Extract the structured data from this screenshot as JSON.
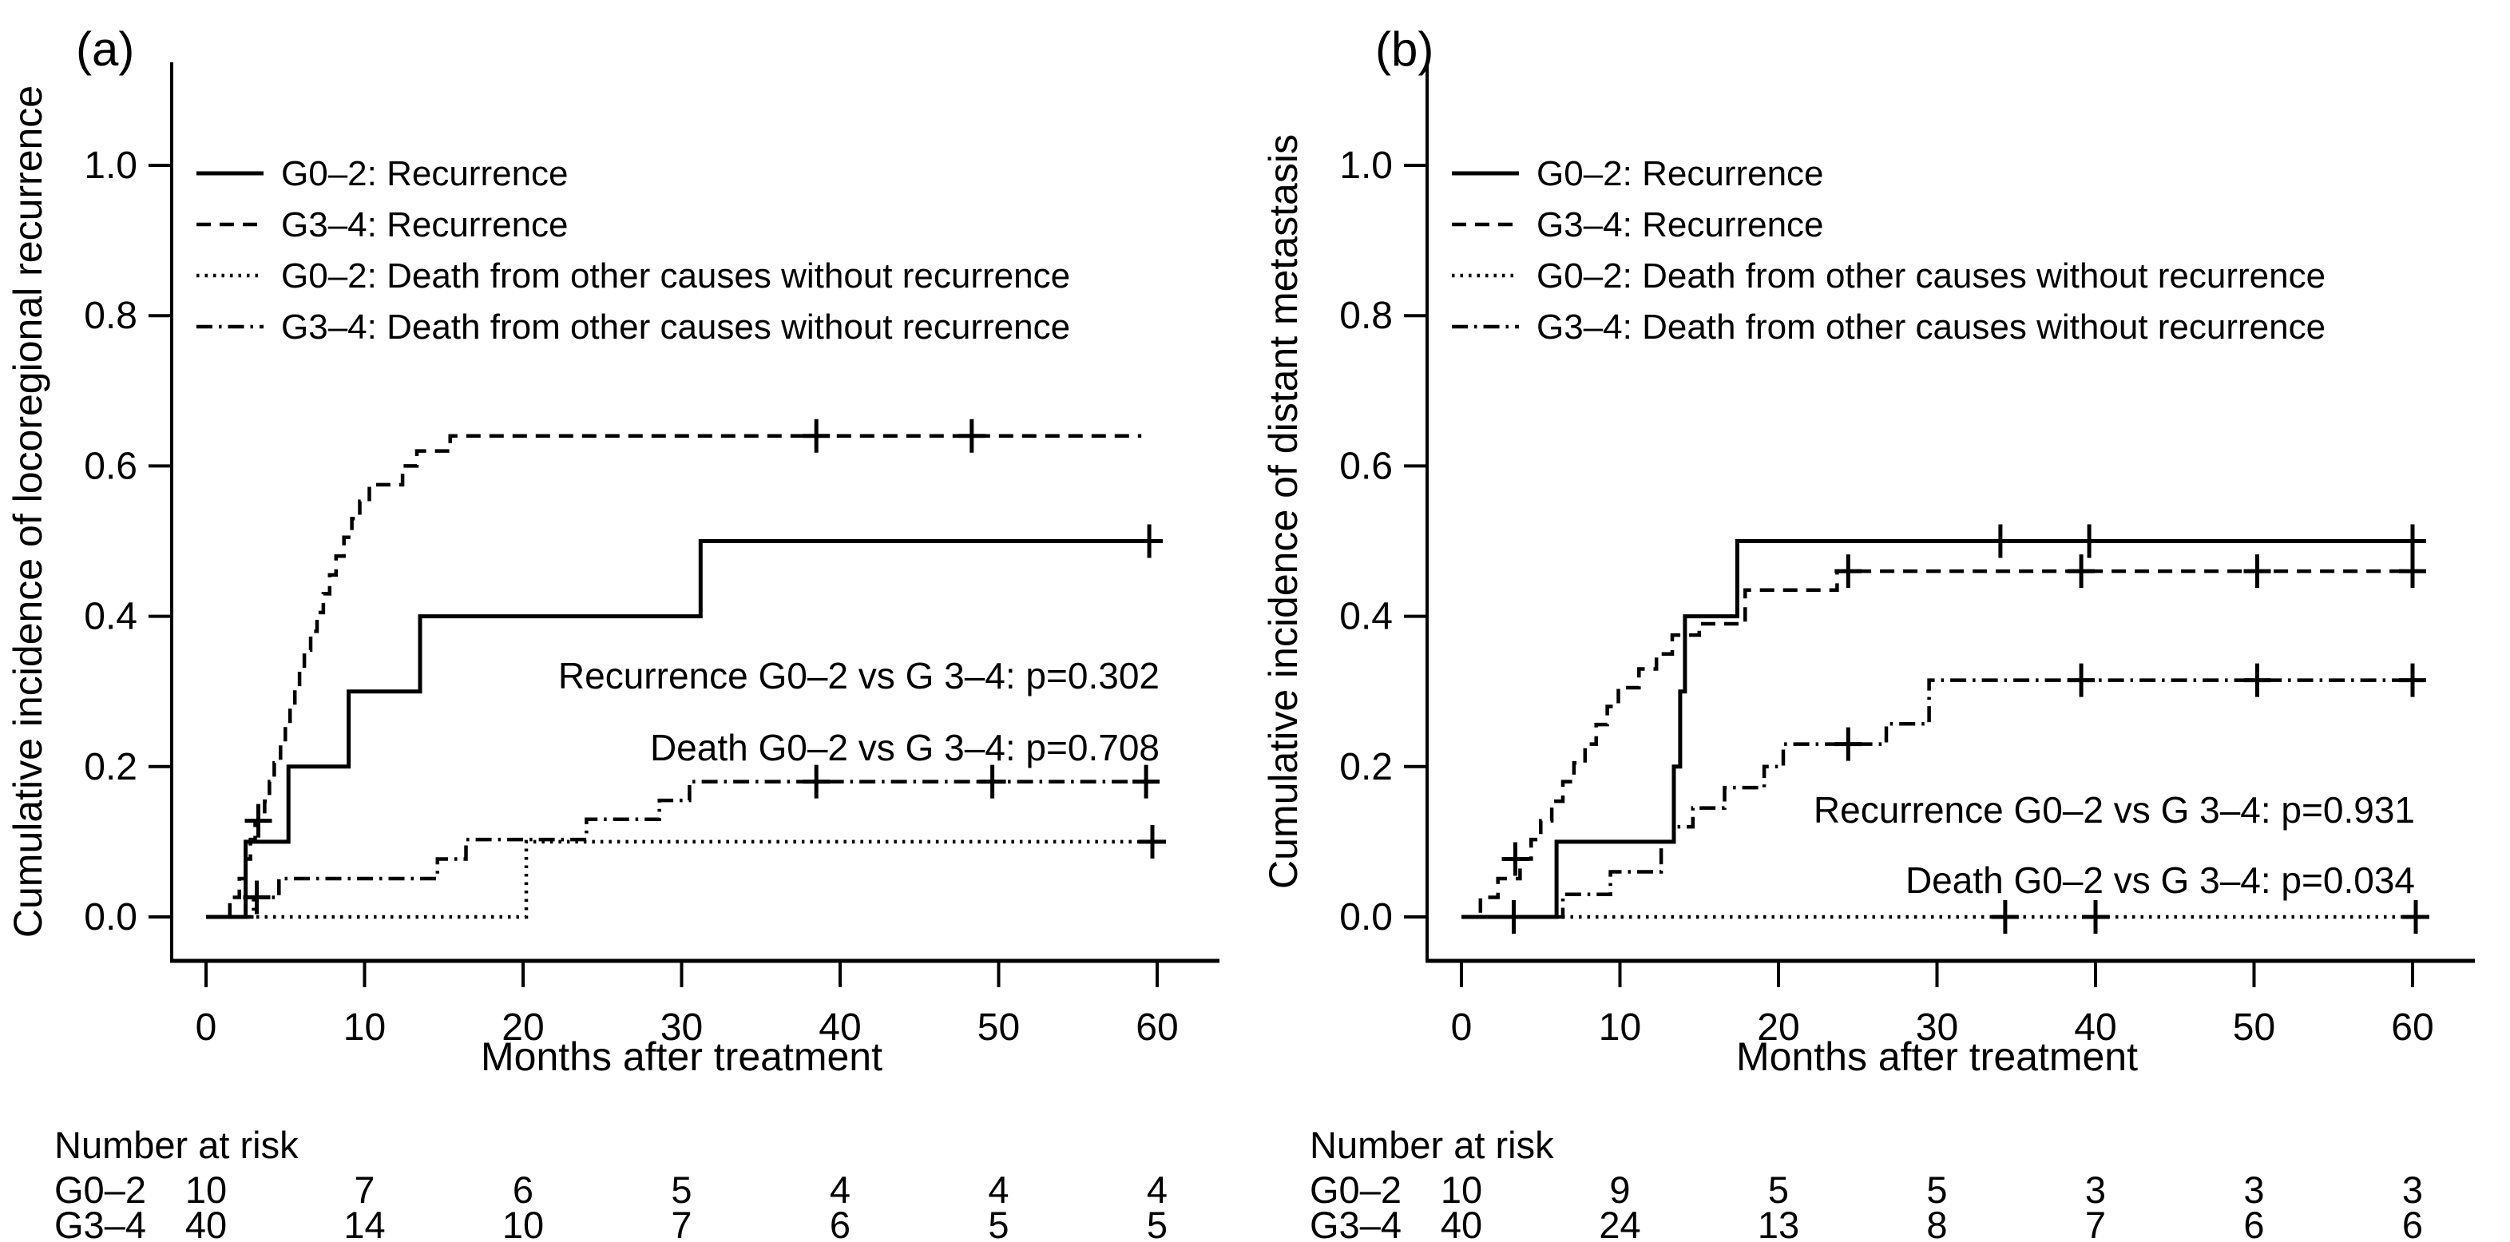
{
  "colors": {
    "foreground": "#000000",
    "background": "#ffffff"
  },
  "chart_data": [
    {
      "panel_label": "(a)",
      "type": "line",
      "subtype": "cumulative-incidence-step-curves",
      "title": "",
      "ylabel": "Cumulative incidence of locoregional recurrence",
      "xlabel": "Months after treatment",
      "xlim": [
        0,
        62
      ],
      "ylim": [
        0,
        1.08
      ],
      "xticks": [
        0,
        10,
        20,
        30,
        40,
        50,
        60
      ],
      "yticks": [
        0.0,
        0.2,
        0.4,
        0.6,
        0.8,
        1.0
      ],
      "grid": false,
      "legend_position": "upper-left",
      "legend": [
        "G0–2: Recurrence",
        "G3–4: Recurrence",
        "G0–2: Death from other causes without recurrence",
        "G3–4: Death from other causes without recurrence"
      ],
      "annotations": [
        "Recurrence G0–2 vs G 3–4: p=0.302",
        "Death G0–2 vs G 3–4: p=0.708"
      ],
      "series": [
        {
          "name": "G0–2: Recurrence",
          "style": "solid",
          "end": 60.3,
          "steps": [
            [
              2.5,
              0.1
            ],
            [
              5.2,
              0.2
            ],
            [
              9,
              0.3
            ],
            [
              13.5,
              0.4
            ],
            [
              31.2,
              0.5
            ]
          ],
          "censors": [
            [
              59.5,
              0.5
            ]
          ]
        },
        {
          "name": "G3–4: Recurrence",
          "style": "dashed",
          "end": 59,
          "steps": [
            [
              1.5,
              0.026
            ],
            [
              2.1,
              0.051
            ],
            [
              2.5,
              0.077
            ],
            [
              2.8,
              0.103
            ],
            [
              3.1,
              0.128
            ],
            [
              3.7,
              0.154
            ],
            [
              4,
              0.18
            ],
            [
              4.3,
              0.205
            ],
            [
              4.7,
              0.23
            ],
            [
              5,
              0.256
            ],
            [
              5.3,
              0.28
            ],
            [
              5.6,
              0.305
            ],
            [
              5.9,
              0.33
            ],
            [
              6.2,
              0.355
            ],
            [
              6.6,
              0.38
            ],
            [
              7,
              0.405
            ],
            [
              7.4,
              0.43
            ],
            [
              7.8,
              0.455
            ],
            [
              8.2,
              0.48
            ],
            [
              8.7,
              0.505
            ],
            [
              9.2,
              0.53
            ],
            [
              9.7,
              0.553
            ],
            [
              10.3,
              0.575
            ],
            [
              12.4,
              0.6
            ],
            [
              13.3,
              0.62
            ],
            [
              15.4,
              0.64
            ]
          ],
          "censors": [
            [
              3.3,
              0.128
            ],
            [
              38.5,
              0.64
            ],
            [
              48.3,
              0.64
            ]
          ]
        },
        {
          "name": "G0–2: Death from other causes without recurrence",
          "style": "dotted",
          "end": 60.4,
          "steps": [
            [
              20.2,
              0.1
            ]
          ],
          "censors": [
            [
              59.7,
              0.1
            ]
          ]
        },
        {
          "name": "G3–4: Death from other causes without recurrence",
          "style": "dashdot",
          "end": 60.2,
          "steps": [
            [
              3,
              0.026
            ],
            [
              4.6,
              0.051
            ],
            [
              14.6,
              0.077
            ],
            [
              16.4,
              0.103
            ],
            [
              24,
              0.13
            ],
            [
              28.6,
              0.155
            ],
            [
              30.5,
              0.18
            ]
          ],
          "censors": [
            [
              3.2,
              0.026
            ],
            [
              38.5,
              0.18
            ],
            [
              49.6,
              0.18
            ],
            [
              59.3,
              0.18
            ]
          ]
        }
      ],
      "number_at_risk": {
        "title": "Number at risk",
        "rows": [
          {
            "label": "G0–2",
            "values": [
              10,
              7,
              6,
              5,
              4,
              4,
              4
            ]
          },
          {
            "label": "G3–4",
            "values": [
              40,
              14,
              10,
              7,
              6,
              5,
              5
            ]
          }
        ]
      }
    },
    {
      "panel_label": "(b)",
      "type": "line",
      "subtype": "cumulative-incidence-step-curves",
      "title": "",
      "ylabel": "Cumulative incidence of distant metastasis",
      "xlabel": "Months after treatment",
      "xlim": [
        0,
        62
      ],
      "ylim": [
        0,
        1.08
      ],
      "xticks": [
        0,
        10,
        20,
        30,
        40,
        50,
        60
      ],
      "yticks": [
        0.0,
        0.2,
        0.4,
        0.6,
        0.8,
        1.0
      ],
      "grid": false,
      "legend_position": "upper-left",
      "legend": [
        "G0–2: Recurrence",
        "G3–4: Recurrence",
        "G0–2: Death from other causes without recurrence",
        "G3–4: Death from other causes without recurrence"
      ],
      "annotations": [
        "Recurrence G0–2 vs G 3–4: p=0.931",
        "Death G0–2 vs G 3–4: p=0.034"
      ],
      "series": [
        {
          "name": "G0–2: Recurrence",
          "style": "solid",
          "end": 60.4,
          "steps": [
            [
              6,
              0.1
            ],
            [
              13.4,
              0.2
            ],
            [
              13.8,
              0.3
            ],
            [
              14.1,
              0.4
            ],
            [
              17.4,
              0.5
            ]
          ],
          "censors": [
            [
              34,
              0.5
            ],
            [
              39.6,
              0.5
            ],
            [
              60,
              0.5
            ]
          ]
        },
        {
          "name": "G3–4: Recurrence",
          "style": "dashed",
          "end": 60.4,
          "steps": [
            [
              1.2,
              0.026
            ],
            [
              2.3,
              0.051
            ],
            [
              3.7,
              0.077
            ],
            [
              4.4,
              0.103
            ],
            [
              5,
              0.128
            ],
            [
              5.7,
              0.154
            ],
            [
              6.4,
              0.18
            ],
            [
              7.1,
              0.205
            ],
            [
              7.8,
              0.23
            ],
            [
              8.5,
              0.256
            ],
            [
              9.2,
              0.28
            ],
            [
              9.9,
              0.305
            ],
            [
              11.2,
              0.33
            ],
            [
              12.3,
              0.35
            ],
            [
              13.3,
              0.375
            ],
            [
              15,
              0.39
            ],
            [
              17.9,
              0.435
            ],
            [
              23.7,
              0.46
            ]
          ],
          "censors": [
            [
              3.4,
              0.077
            ],
            [
              24.4,
              0.46
            ],
            [
              39.1,
              0.46
            ],
            [
              50.2,
              0.46
            ],
            [
              60,
              0.46
            ]
          ]
        },
        {
          "name": "G0–2: Death from other causes without recurrence",
          "style": "dotted",
          "end": 60.4,
          "steps": [],
          "censors": [
            [
              3.3,
              0
            ],
            [
              34.3,
              0
            ],
            [
              40,
              0
            ],
            [
              60.2,
              0
            ]
          ]
        },
        {
          "name": "G3–4: Death from other causes without recurrence",
          "style": "dashdot",
          "end": 60.4,
          "steps": [
            [
              6.4,
              0.03
            ],
            [
              9.4,
              0.06
            ],
            [
              12.6,
              0.1
            ],
            [
              13.4,
              0.12
            ],
            [
              14.6,
              0.145
            ],
            [
              16.6,
              0.172
            ],
            [
              19.1,
              0.2
            ],
            [
              20.3,
              0.23
            ],
            [
              26.8,
              0.257
            ],
            [
              29.5,
              0.315
            ]
          ],
          "censors": [
            [
              24.4,
              0.23
            ],
            [
              39.1,
              0.315
            ],
            [
              50.2,
              0.315
            ],
            [
              60,
              0.315
            ]
          ]
        }
      ],
      "number_at_risk": {
        "title": "Number at risk",
        "rows": [
          {
            "label": "G0–2",
            "values": [
              10,
              9,
              5,
              5,
              3,
              3,
              3
            ]
          },
          {
            "label": "G3–4",
            "values": [
              40,
              24,
              13,
              8,
              7,
              6,
              6
            ]
          }
        ]
      }
    }
  ]
}
